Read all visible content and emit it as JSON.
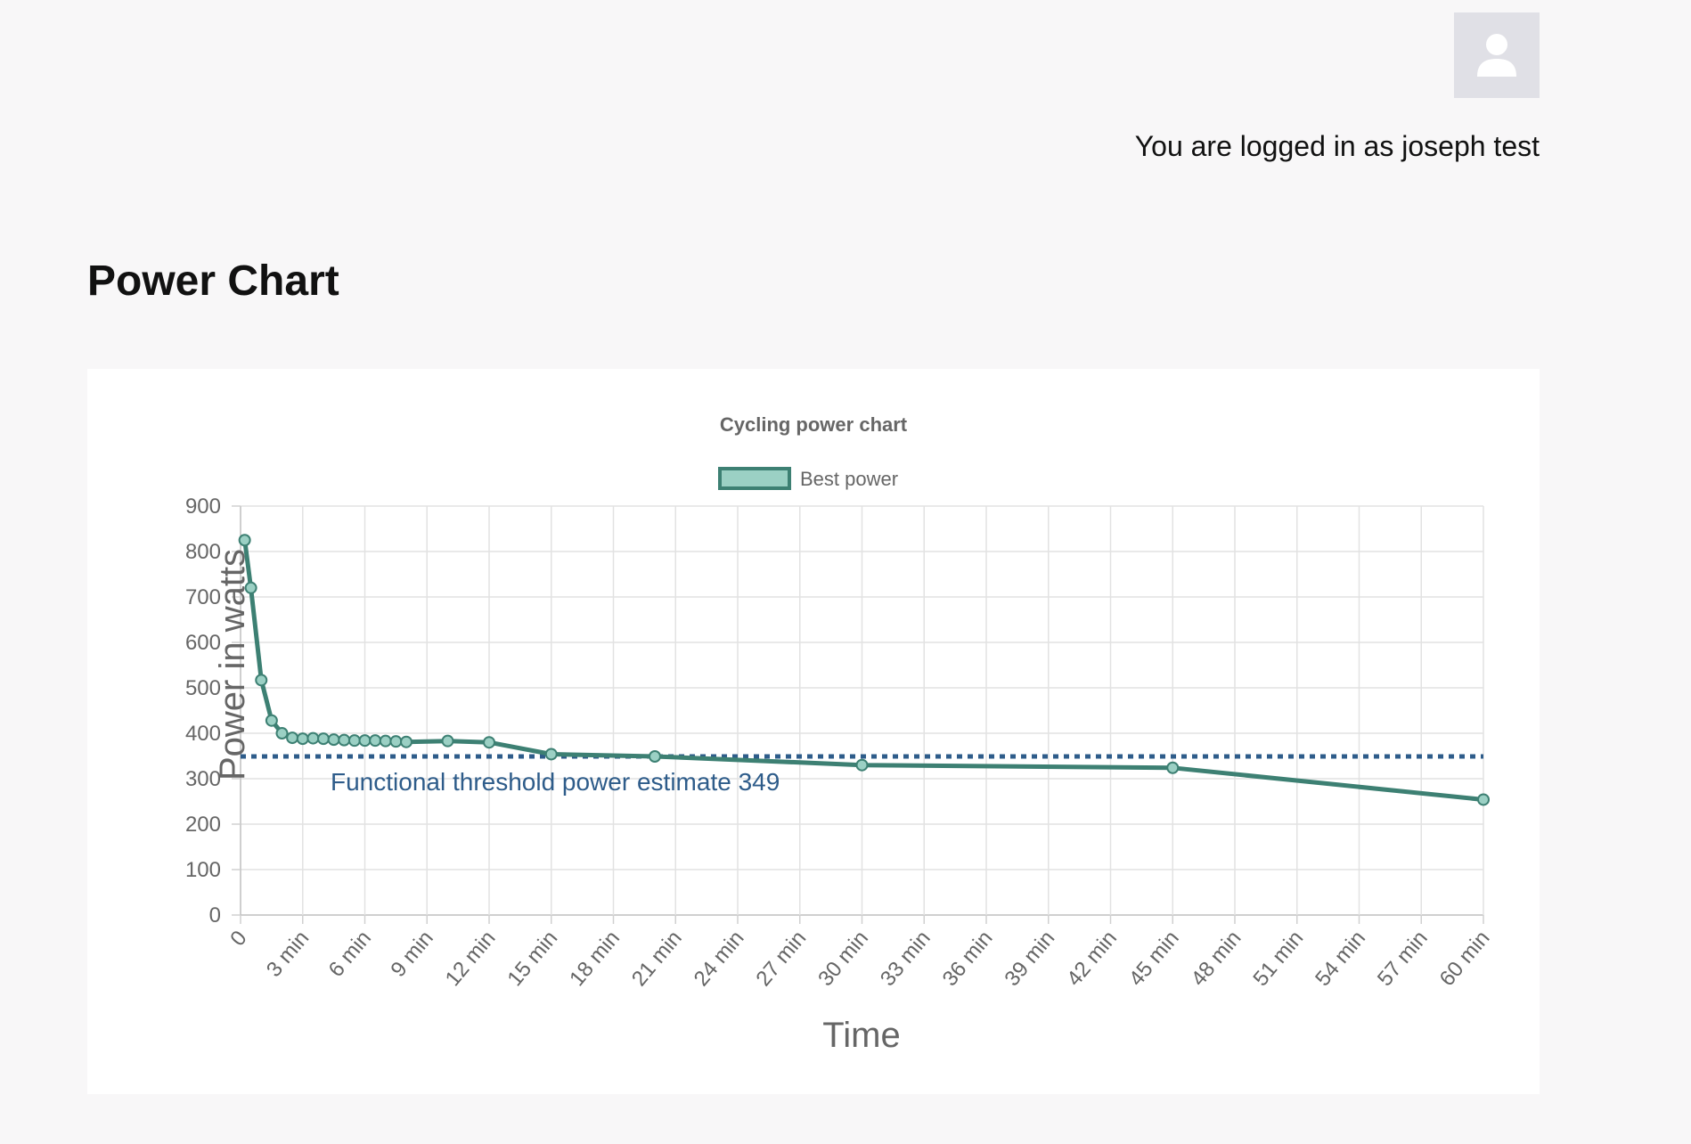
{
  "header": {
    "avatar_icon": "user-avatar-icon",
    "login_text": "You are logged in as joseph test"
  },
  "page": {
    "title": "Power Chart"
  },
  "chart_data": {
    "type": "line",
    "title": "Cycling power chart",
    "xlabel": "Time",
    "ylabel": "Power in watts",
    "ylim": [
      0,
      900
    ],
    "xlim": [
      0,
      60
    ],
    "grid": true,
    "legend": {
      "placement": "top-center",
      "entries": [
        "Best power"
      ]
    },
    "x_tick_labels": [
      "0",
      "3 min",
      "6 min",
      "9 min",
      "12 min",
      "15 min",
      "18 min",
      "21 min",
      "24 min",
      "27 min",
      "30 min",
      "33 min",
      "36 min",
      "39 min",
      "42 min",
      "45 min",
      "48 min",
      "51 min",
      "54 min",
      "57 min",
      "60 min"
    ],
    "y_tick_labels": [
      "0",
      "100",
      "200",
      "300",
      "400",
      "500",
      "600",
      "700",
      "800",
      "900"
    ],
    "series": [
      {
        "name": "Best power",
        "color": "#3d8073",
        "fill": "#9bd0c4",
        "x": [
          0.2,
          0.5,
          1,
          1.5,
          2,
          2.5,
          3,
          3.5,
          4,
          4.5,
          5,
          5.5,
          6,
          6.5,
          7,
          7.5,
          8,
          10,
          12,
          15,
          20,
          30,
          45,
          60
        ],
        "y": [
          825,
          720,
          517,
          428,
          400,
          390,
          388,
          389,
          388,
          386,
          385,
          384,
          384,
          384,
          383,
          382,
          381,
          383,
          380,
          354,
          349,
          330,
          324,
          254
        ]
      }
    ],
    "annotations": [
      {
        "type": "hline",
        "y": 349,
        "color": "#2e5c8a",
        "style": "dotted",
        "label": "Functional threshold power estimate 349"
      }
    ]
  }
}
